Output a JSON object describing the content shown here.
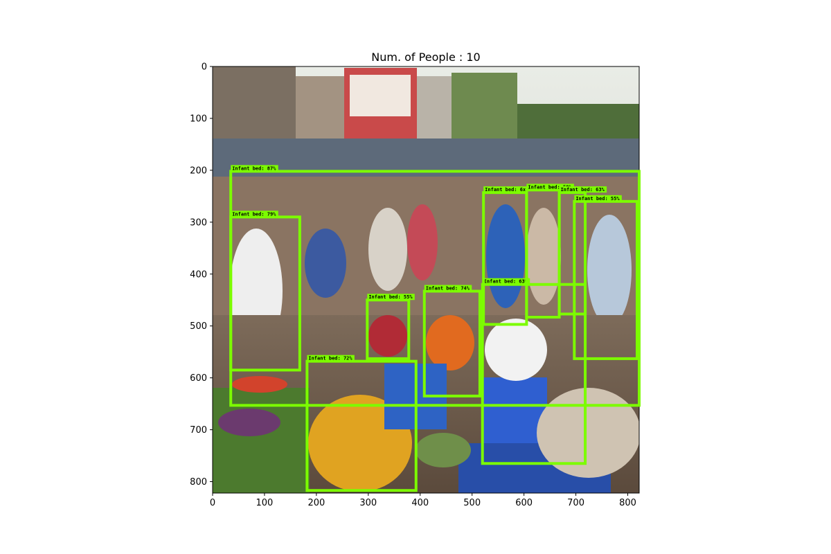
{
  "title": "Num. of People : 10",
  "colors": {
    "box": "#7cfc00",
    "label_bg": "#7cfc00",
    "label_text": "#000000"
  },
  "image_extent": {
    "width": 822,
    "height": 822
  },
  "axes": {
    "x_ticks": [
      0,
      100,
      200,
      300,
      400,
      500,
      600,
      700,
      800
    ],
    "y_ticks": [
      0,
      100,
      200,
      300,
      400,
      500,
      600,
      700,
      800
    ]
  },
  "detections": [
    {
      "label": "Infant bed: 87%",
      "x1": 35,
      "y1": 202,
      "x2": 822,
      "y2": 653
    },
    {
      "label": "Infant bed: 79%",
      "x1": 35,
      "y1": 290,
      "x2": 168,
      "y2": 585
    },
    {
      "label": "Infant bed: 72%",
      "x1": 182,
      "y1": 568,
      "x2": 392,
      "y2": 817
    },
    {
      "label": "Infant bed: 55%",
      "x1": 298,
      "y1": 450,
      "x2": 378,
      "y2": 563
    },
    {
      "label": "Infant bed: 74%",
      "x1": 408,
      "y1": 433,
      "x2": 515,
      "y2": 635
    },
    {
      "label": "Infant bed: 63%",
      "x1": 520,
      "y1": 420,
      "x2": 718,
      "y2": 765
    },
    {
      "label": "Infant bed: 6x",
      "x1": 522,
      "y1": 243,
      "x2": 605,
      "y2": 497
    },
    {
      "label": "Infant bed: 50%",
      "x1": 605,
      "y1": 238,
      "x2": 668,
      "y2": 483
    },
    {
      "label": "Infant bed: 63%",
      "x1": 668,
      "y1": 243,
      "x2": 718,
      "y2": 477
    },
    {
      "label": "Infant bed: 55%",
      "x1": 697,
      "y1": 260,
      "x2": 818,
      "y2": 563
    }
  ],
  "scene": {
    "description_icon": "market-crowd-photo"
  }
}
